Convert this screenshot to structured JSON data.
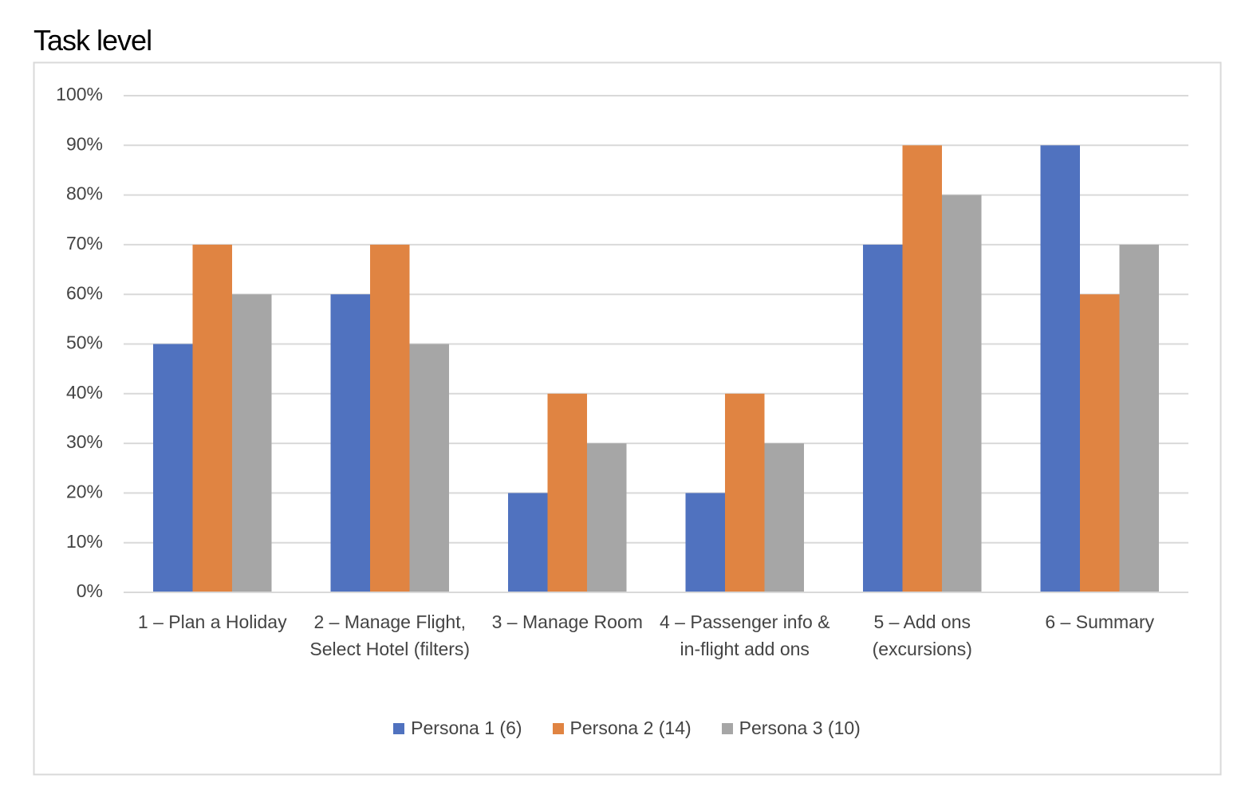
{
  "chart_data": {
    "type": "bar",
    "title": "Task level",
    "categories": [
      "1 – Plan a Holiday",
      "2 – Manage Flight, Select Hotel (filters)",
      "3 – Manage Room",
      "4 – Passenger info & in-flight add ons",
      "5 – Add ons (excursions)",
      "6 – Summary"
    ],
    "series": [
      {
        "name": "Persona 1 (6)",
        "color": "#5072bf",
        "values": [
          50,
          60,
          20,
          20,
          70,
          90
        ]
      },
      {
        "name": "Persona 2 (14)",
        "color": "#e08442",
        "values": [
          70,
          70,
          40,
          40,
          90,
          60
        ]
      },
      {
        "name": "Persona 3 (10)",
        "color": "#a6a6a6",
        "values": [
          60,
          50,
          30,
          30,
          80,
          70
        ]
      }
    ],
    "ylim": [
      0,
      100
    ],
    "yticks": [
      {
        "value": 0,
        "label": "0%"
      },
      {
        "value": 10,
        "label": "10%"
      },
      {
        "value": 20,
        "label": "20%"
      },
      {
        "value": 30,
        "label": "30%"
      },
      {
        "value": 40,
        "label": "40%"
      },
      {
        "value": 50,
        "label": "50%"
      },
      {
        "value": 60,
        "label": "60%"
      },
      {
        "value": 70,
        "label": "70%"
      },
      {
        "value": 80,
        "label": "80%"
      },
      {
        "value": 90,
        "label": "90%"
      },
      {
        "value": 100,
        "label": "100%"
      }
    ],
    "grid": true,
    "legend": "bottom"
  }
}
